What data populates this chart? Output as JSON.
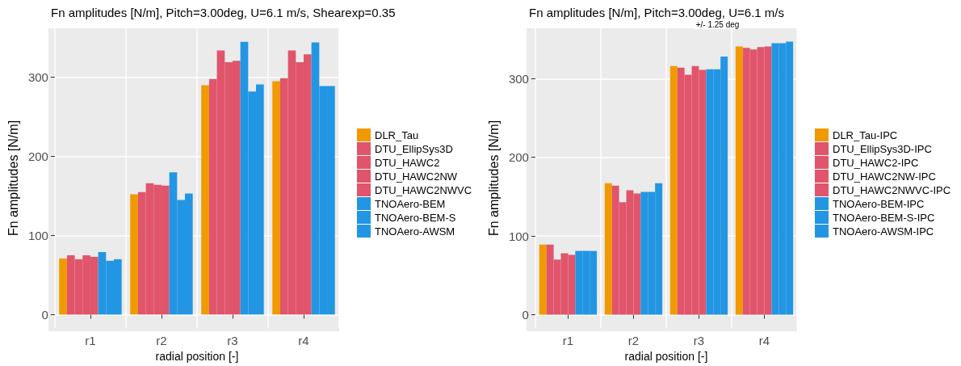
{
  "chart_data": [
    {
      "type": "bar",
      "title": "Fn amplitudes [N/m], Pitch=3.00deg, U=6.1 m/s, Shearexp=0.35",
      "xlabel": "radial position [-]",
      "ylabel": "Fn amplitudes [N/m]",
      "categories": [
        "r1",
        "r2",
        "r3",
        "r4"
      ],
      "ylim": [
        -17,
        362
      ],
      "yticks": [
        0,
        100,
        200,
        300
      ],
      "grid": true,
      "legend": "right",
      "series": [
        {
          "name": "DLR_Tau",
          "color": "#f09a00",
          "values": [
            71,
            152,
            290,
            295
          ]
        },
        {
          "name": "DTU_EllipSys3D",
          "color": "#e0556b",
          "values": [
            75,
            155,
            298,
            299
          ]
        },
        {
          "name": "DTU_HAWC2",
          "color": "#e0556b",
          "values": [
            70,
            166,
            334,
            334
          ]
        },
        {
          "name": "DTU_HAWC2NW",
          "color": "#e0556b",
          "values": [
            75,
            164,
            319,
            319
          ]
        },
        {
          "name": "DTU_HAWC2NWVC",
          "color": "#e0556b",
          "values": [
            73,
            163,
            321,
            329
          ]
        },
        {
          "name": "TNOAero-BEM",
          "color": "#2396e3",
          "values": [
            79,
            180,
            345,
            344
          ]
        },
        {
          "name": "TNOAero-BEM-S",
          "color": "#2396e3",
          "values": [
            68,
            145,
            282,
            289
          ]
        },
        {
          "name": "TNOAero-AWSM",
          "color": "#2396e3",
          "values": [
            70,
            153,
            291,
            289
          ]
        }
      ]
    },
    {
      "type": "bar",
      "title": "Fn amplitudes [N/m], Pitch=3.00deg, U=6.1 m/s",
      "xlabel": "radial position [-]",
      "ylabel": "Fn amplitudes [N/m]",
      "categories": [
        "r1",
        "r2",
        "r3",
        "r4"
      ],
      "ylim": [
        -17,
        364
      ],
      "yticks": [
        0,
        100,
        200,
        300
      ],
      "grid": true,
      "legend": "right",
      "annotations": [
        "+/- 1.25 deg"
      ],
      "series": [
        {
          "name": "DLR_Tau-IPC",
          "color": "#f09a00",
          "values": [
            89,
            167,
            316,
            341
          ]
        },
        {
          "name": "DTU_EllipSys3D-IPC",
          "color": "#e0556b",
          "values": [
            89,
            164,
            314,
            339
          ]
        },
        {
          "name": "DTU_HAWC2-IPC",
          "color": "#e0556b",
          "values": [
            70,
            143,
            305,
            337
          ]
        },
        {
          "name": "DTU_HAWC2NW-IPC",
          "color": "#e0556b",
          "values": [
            78,
            158,
            316,
            340
          ]
        },
        {
          "name": "DTU_HAWC2NWVC-IPC",
          "color": "#e0556b",
          "values": [
            76,
            154,
            311,
            341
          ]
        },
        {
          "name": "TNOAero-BEM-IPC",
          "color": "#2396e3",
          "values": [
            81,
            156,
            312,
            345
          ]
        },
        {
          "name": "TNOAero-BEM-S-IPC",
          "color": "#2396e3",
          "values": [
            81,
            156,
            312,
            345
          ]
        },
        {
          "name": "TNOAero-AWSM-IPC",
          "color": "#2396e3",
          "values": [
            81,
            167,
            328,
            347
          ]
        }
      ]
    }
  ]
}
